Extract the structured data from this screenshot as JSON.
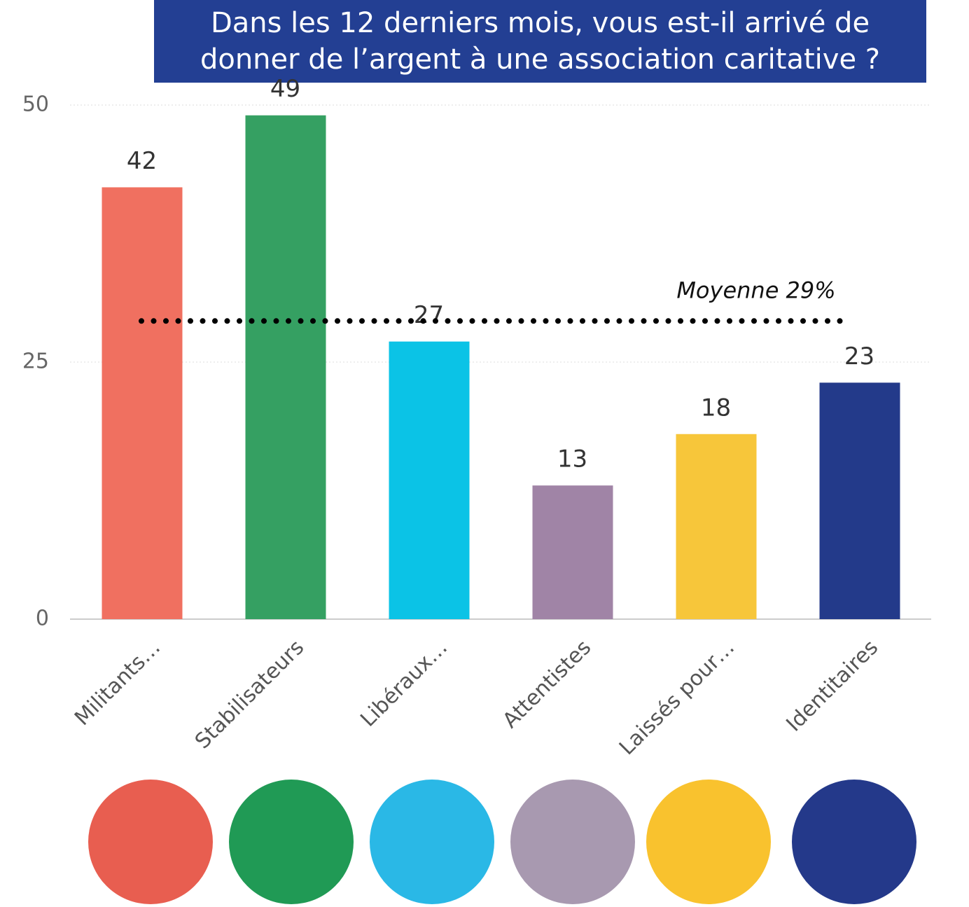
{
  "chart_data": {
    "type": "bar",
    "title": "Dans les 12 derniers mois, vous est-il arrivé de donner de l’argent à une association caritative ?",
    "categories": [
      "Militants…",
      "Stabilisateurs",
      "Libéraux…",
      "Attentistes",
      "Laissés pour…",
      "Identitaires"
    ],
    "values": [
      42,
      49,
      27,
      13,
      18,
      23
    ],
    "colors": [
      "#f07060",
      "#35a062",
      "#0bc3e6",
      "#a084a6",
      "#f7c63a",
      "#233a8a"
    ],
    "ylim": [
      0,
      50
    ],
    "yticks": [
      0,
      25,
      50
    ],
    "grid": true,
    "average": {
      "value": 29,
      "label": "Moyenne 29%"
    }
  }
}
